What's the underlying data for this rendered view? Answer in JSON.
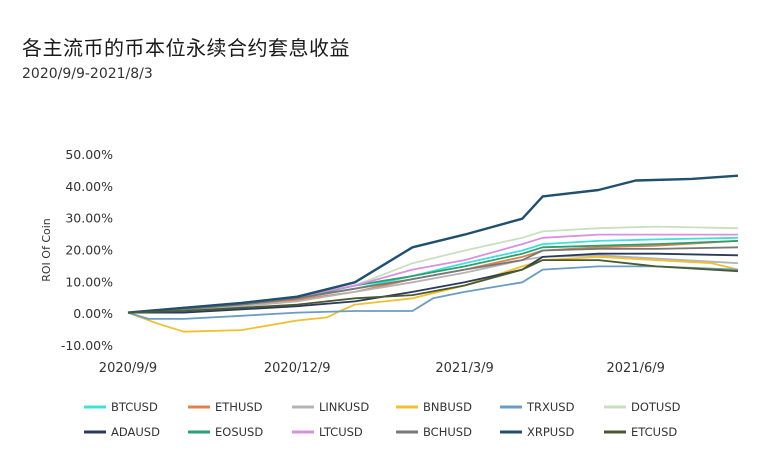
{
  "chart_data": {
    "type": "line",
    "title": "各主流币的币本位永续合约套息收益",
    "subtitle": "2020/9/9-2021/8/3",
    "ylabel": "ROI Of Coin",
    "xlabel": "",
    "x_start": "2020-09-09",
    "x_end": "2021-08-03",
    "x_ticks": [
      {
        "date": "2020-09-09",
        "label": "2020/9/9"
      },
      {
        "date": "2020-12-09",
        "label": "2020/12/9"
      },
      {
        "date": "2021-03-09",
        "label": "2021/3/9"
      },
      {
        "date": "2021-06-09",
        "label": "2021/6/9"
      }
    ],
    "ylim": [
      -10,
      50
    ],
    "y_ticks": [
      {
        "value": -10,
        "label": "-10.00%"
      },
      {
        "value": 0,
        "label": "0.00%"
      },
      {
        "value": 10,
        "label": "10.00%"
      },
      {
        "value": 20,
        "label": "20.00%"
      },
      {
        "value": 30,
        "label": "30.00%"
      },
      {
        "value": 40,
        "label": "40.00%"
      },
      {
        "value": 50,
        "label": "50.00%"
      }
    ],
    "grid": false,
    "legend_position": "bottom",
    "series": [
      {
        "name": "BTCUSD",
        "color": "#40e0d8",
        "points": [
          [
            "2020-09-09",
            0.5
          ],
          [
            "2020-10-09",
            1.5
          ],
          [
            "2020-11-09",
            3
          ],
          [
            "2020-12-09",
            5
          ],
          [
            "2021-01-09",
            8
          ],
          [
            "2021-02-09",
            12
          ],
          [
            "2021-03-09",
            16
          ],
          [
            "2021-04-09",
            20
          ],
          [
            "2021-04-20",
            22
          ],
          [
            "2021-05-20",
            23
          ],
          [
            "2021-06-20",
            23.5
          ],
          [
            "2021-08-03",
            24
          ]
        ]
      },
      {
        "name": "ETHUSD",
        "color": "#e0804a",
        "points": [
          [
            "2020-09-09",
            0.5
          ],
          [
            "2020-10-09",
            1.5
          ],
          [
            "2020-11-09",
            3
          ],
          [
            "2020-12-09",
            4.5
          ],
          [
            "2021-01-09",
            7
          ],
          [
            "2021-02-09",
            11
          ],
          [
            "2021-03-09",
            14
          ],
          [
            "2021-04-09",
            18
          ],
          [
            "2021-04-20",
            20
          ],
          [
            "2021-05-20",
            21
          ],
          [
            "2021-06-20",
            21.5
          ],
          [
            "2021-08-03",
            23
          ]
        ]
      },
      {
        "name": "LINKUSD",
        "color": "#b4b4b4",
        "points": [
          [
            "2020-09-09",
            0.5
          ],
          [
            "2020-10-09",
            1
          ],
          [
            "2020-11-09",
            2.5
          ],
          [
            "2020-12-09",
            4
          ],
          [
            "2021-01-09",
            7
          ],
          [
            "2021-02-09",
            10
          ],
          [
            "2021-03-09",
            13
          ],
          [
            "2021-04-09",
            17
          ],
          [
            "2021-04-20",
            18
          ],
          [
            "2021-05-20",
            18.5
          ],
          [
            "2021-06-20",
            17.5
          ],
          [
            "2021-08-03",
            16
          ]
        ]
      },
      {
        "name": "BNBUSD",
        "color": "#f0c030",
        "points": [
          [
            "2020-09-09",
            0.5
          ],
          [
            "2020-09-25",
            -3
          ],
          [
            "2020-10-09",
            -5.5
          ],
          [
            "2020-11-09",
            -5
          ],
          [
            "2020-12-09",
            -2
          ],
          [
            "2020-12-25",
            -1
          ],
          [
            "2021-01-01",
            1
          ],
          [
            "2021-01-09",
            3
          ],
          [
            "2021-02-09",
            5
          ],
          [
            "2021-03-09",
            9
          ],
          [
            "2021-04-09",
            15
          ],
          [
            "2021-04-20",
            17
          ],
          [
            "2021-05-20",
            18
          ],
          [
            "2021-06-20",
            17
          ],
          [
            "2021-07-20",
            16
          ],
          [
            "2021-08-03",
            14
          ]
        ]
      },
      {
        "name": "TRXUSD",
        "color": "#6a9cc4",
        "points": [
          [
            "2020-09-09",
            0.5
          ],
          [
            "2020-09-20",
            -1.5
          ],
          [
            "2020-10-09",
            -1.5
          ],
          [
            "2020-11-09",
            -0.5
          ],
          [
            "2020-12-09",
            0.5
          ],
          [
            "2021-01-09",
            1
          ],
          [
            "2021-02-09",
            1
          ],
          [
            "2021-02-20",
            5
          ],
          [
            "2021-03-09",
            7
          ],
          [
            "2021-04-09",
            10
          ],
          [
            "2021-04-20",
            14
          ],
          [
            "2021-05-20",
            15
          ],
          [
            "2021-06-20",
            15
          ],
          [
            "2021-08-03",
            14
          ]
        ]
      },
      {
        "name": "DOTUSD",
        "color": "#c8e0c0",
        "points": [
          [
            "2020-09-09",
            0.5
          ],
          [
            "2020-10-09",
            1.5
          ],
          [
            "2020-11-09",
            3.5
          ],
          [
            "2020-12-09",
            5
          ],
          [
            "2021-01-09",
            9
          ],
          [
            "2021-02-09",
            16
          ],
          [
            "2021-03-09",
            20
          ],
          [
            "2021-04-09",
            24
          ],
          [
            "2021-04-20",
            26
          ],
          [
            "2021-05-20",
            27
          ],
          [
            "2021-06-20",
            27.5
          ],
          [
            "2021-08-03",
            27
          ]
        ]
      },
      {
        "name": "ADAUSD",
        "color": "#2a3a5a",
        "points": [
          [
            "2020-09-09",
            0.5
          ],
          [
            "2020-10-09",
            0.5
          ],
          [
            "2020-11-09",
            1.5
          ],
          [
            "2020-12-09",
            2.5
          ],
          [
            "2021-01-09",
            4
          ],
          [
            "2021-02-09",
            7
          ],
          [
            "2021-03-09",
            10
          ],
          [
            "2021-04-09",
            14
          ],
          [
            "2021-04-20",
            18
          ],
          [
            "2021-05-20",
            19
          ],
          [
            "2021-06-20",
            19
          ],
          [
            "2021-08-03",
            18.5
          ]
        ]
      },
      {
        "name": "EOSUSD",
        "color": "#2aa070",
        "points": [
          [
            "2020-09-09",
            0.5
          ],
          [
            "2020-10-09",
            2
          ],
          [
            "2020-11-09",
            3.5
          ],
          [
            "2020-12-09",
            5
          ],
          [
            "2021-01-09",
            9
          ],
          [
            "2021-02-09",
            12
          ],
          [
            "2021-03-09",
            15
          ],
          [
            "2021-04-09",
            19
          ],
          [
            "2021-04-20",
            21
          ],
          [
            "2021-05-20",
            21.5
          ],
          [
            "2021-06-20",
            22
          ],
          [
            "2021-08-03",
            23
          ]
        ]
      },
      {
        "name": "LTCUSD",
        "color": "#d890e0",
        "points": [
          [
            "2020-09-09",
            0.5
          ],
          [
            "2020-10-09",
            2
          ],
          [
            "2020-11-09",
            3.5
          ],
          [
            "2020-12-09",
            5.5
          ],
          [
            "2021-01-09",
            9
          ],
          [
            "2021-02-09",
            14
          ],
          [
            "2021-03-09",
            17
          ],
          [
            "2021-04-09",
            22
          ],
          [
            "2021-04-20",
            24
          ],
          [
            "2021-05-20",
            25
          ],
          [
            "2021-06-20",
            25
          ],
          [
            "2021-08-03",
            25
          ]
        ]
      },
      {
        "name": "BCHUSD",
        "color": "#787878",
        "points": [
          [
            "2020-09-09",
            0.5
          ],
          [
            "2020-10-09",
            1.5
          ],
          [
            "2020-11-09",
            3
          ],
          [
            "2020-12-09",
            5
          ],
          [
            "2021-01-09",
            8
          ],
          [
            "2021-02-09",
            11
          ],
          [
            "2021-03-09",
            14
          ],
          [
            "2021-04-09",
            17
          ],
          [
            "2021-04-20",
            20
          ],
          [
            "2021-05-20",
            20.5
          ],
          [
            "2021-06-20",
            20.5
          ],
          [
            "2021-08-03",
            21
          ]
        ]
      },
      {
        "name": "XRPUSD",
        "color": "#20506e",
        "points": [
          [
            "2020-09-09",
            0.5
          ],
          [
            "2020-10-09",
            2
          ],
          [
            "2020-11-09",
            3.5
          ],
          [
            "2020-12-09",
            5.5
          ],
          [
            "2021-01-09",
            10
          ],
          [
            "2021-02-09",
            21
          ],
          [
            "2021-03-09",
            25
          ],
          [
            "2021-04-09",
            30
          ],
          [
            "2021-04-20",
            37
          ],
          [
            "2021-05-20",
            39
          ],
          [
            "2021-06-09",
            42
          ],
          [
            "2021-07-09",
            42.5
          ],
          [
            "2021-08-03",
            43.5
          ]
        ]
      },
      {
        "name": "ETCUSD",
        "color": "#4a5a30",
        "points": [
          [
            "2020-09-09",
            0.5
          ],
          [
            "2020-10-09",
            1
          ],
          [
            "2020-11-09",
            2
          ],
          [
            "2020-12-09",
            3
          ],
          [
            "2021-01-09",
            5
          ],
          [
            "2021-02-09",
            6
          ],
          [
            "2021-03-09",
            9
          ],
          [
            "2021-04-09",
            14
          ],
          [
            "2021-04-20",
            17
          ],
          [
            "2021-05-20",
            17
          ],
          [
            "2021-06-20",
            15
          ],
          [
            "2021-08-03",
            13.5
          ]
        ]
      }
    ]
  }
}
